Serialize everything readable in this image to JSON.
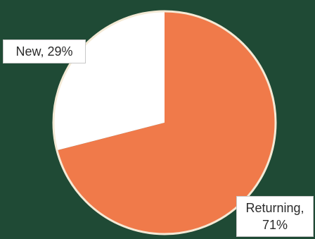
{
  "chart_data": {
    "type": "pie",
    "title": "",
    "slices": [
      {
        "label": "New",
        "value": 29,
        "display": "New, 29%",
        "color": "#ffffff"
      },
      {
        "label": "Returning",
        "value": 71,
        "display_line1": "Returning,",
        "display_line2": "71%",
        "color": "#f07a4a"
      }
    ],
    "legend": "none",
    "start_angle": "top",
    "direction": "clockwise-from-returning"
  },
  "colors": {
    "background": "#1f4a35",
    "outline": "#f4ead6"
  }
}
